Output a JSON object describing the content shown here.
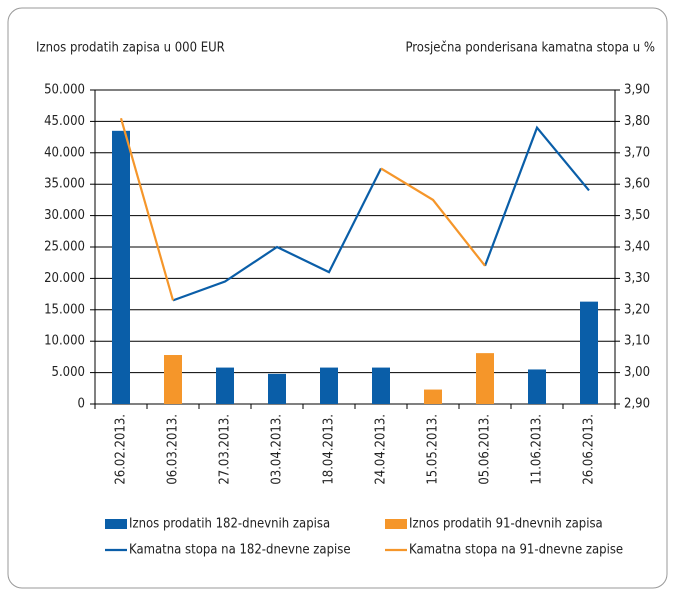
{
  "chart_data": {
    "type": "bar_line",
    "y_label": "Iznos prodatih zapisa u 000 EUR",
    "y2_label": "Prosječna ponderisana kamatna stopa u %",
    "categories": [
      "26.02.2013.",
      "06.03.2013.",
      "27.03.2013.",
      "03.04.2013.",
      "18.04.2013.",
      "24.04.2013.",
      "15.05.2013.",
      "05.06.2013.",
      "11.06.2013.",
      "26.06.2013."
    ],
    "series": [
      {
        "name": "Iznos prodatih 182-dnevnih zapisa",
        "color": "#0a5ea8",
        "kind": "bar",
        "values": [
          43500,
          null,
          5800,
          4800,
          5800,
          5800,
          null,
          null,
          5500,
          16300
        ]
      },
      {
        "name": "Iznos prodatih 91-dnevnih zapisa",
        "color": "#f5962a",
        "kind": "bar",
        "values": [
          null,
          7800,
          null,
          null,
          null,
          null,
          2300,
          8100,
          null,
          null
        ]
      },
      {
        "name": "Kamatna stopa na 182-dnevne zapise",
        "color": "#0a5ea8",
        "kind": "line",
        "axis": "y2",
        "values": [
          null,
          3.23,
          3.29,
          3.4,
          3.32,
          3.65,
          null,
          3.34,
          3.78,
          3.58
        ]
      },
      {
        "name": "Kamatna stopa na 91-dnevne zapise",
        "color": "#f5962a",
        "kind": "line",
        "axis": "y2",
        "values": [
          3.81,
          3.23,
          null,
          null,
          null,
          3.65,
          3.55,
          3.34,
          null,
          null
        ]
      }
    ],
    "ylim": [
      0,
      50000
    ],
    "yticks": [
      0,
      {
        "value": 5000,
        "label": "5.000"
      },
      {
        "value": 10000,
        "label": "10.000"
      },
      {
        "value": 15000,
        "label": "15.000"
      },
      {
        "value": 20000,
        "label": "20.000"
      },
      {
        "value": 25000,
        "label": "25.000"
      },
      {
        "value": 30000,
        "label": "30.000"
      },
      {
        "value": 35000,
        "label": "35.000"
      },
      {
        "value": 40000,
        "label": "40.000"
      },
      {
        "value": 45000,
        "label": "45.000"
      },
      {
        "value": 50000,
        "label": "50.000"
      }
    ],
    "y2lim": [
      2.9,
      3.9
    ],
    "y2ticks": [
      {
        "value": 2.9,
        "label": "2,90"
      },
      {
        "value": 3.0,
        "label": "3,00"
      },
      {
        "value": 3.1,
        "label": "3,10"
      },
      {
        "value": 3.2,
        "label": "3,20"
      },
      {
        "value": 3.3,
        "label": "3,30"
      },
      {
        "value": 3.4,
        "label": "3,40"
      },
      {
        "value": 3.5,
        "label": "3,50"
      },
      {
        "value": 3.6,
        "label": "3,60"
      },
      {
        "value": 3.7,
        "label": "3,70"
      },
      {
        "value": 3.8,
        "label": "3,80"
      },
      {
        "value": 3.9,
        "label": "3,90"
      }
    ],
    "grid": true
  }
}
